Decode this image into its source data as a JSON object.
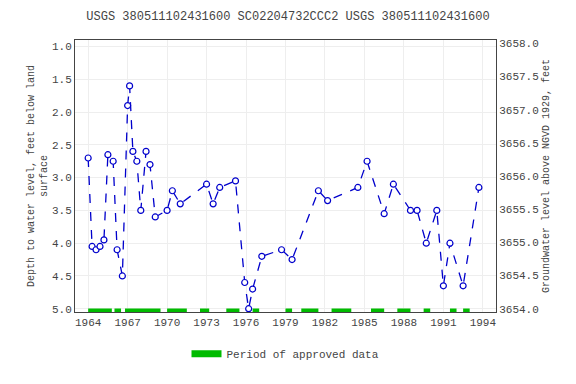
{
  "chart_data": {
    "type": "line",
    "title": "USGS 380511102431600 SC02204732CCC2 USGS 380511102431600",
    "ylabel": "Depth to water level, feet below land\nsurface",
    "y2label": "Groundwater level above NGVD 1929, feet",
    "x": [
      1964.0,
      1964.3,
      1964.6,
      1964.9,
      1965.2,
      1965.5,
      1965.9,
      1966.2,
      1966.6,
      1967.0,
      1967.15,
      1967.4,
      1967.7,
      1968.0,
      1968.4,
      1968.7,
      1969.1,
      1970.0,
      1970.4,
      1971.0,
      1973.0,
      1973.5,
      1974.0,
      1975.2,
      1975.9,
      1976.2,
      1976.5,
      1977.2,
      1978.7,
      1979.5,
      1981.5,
      1982.2,
      1984.5,
      1985.2,
      1986.5,
      1987.2,
      1988.5,
      1989.0,
      1989.7,
      1990.5,
      1991.0,
      1991.5,
      1992.5,
      1993.7
    ],
    "xlim": [
      1963.0,
      1995.0
    ],
    "xticks": [
      1964,
      1967,
      1970,
      1973,
      1976,
      1979,
      1982,
      1985,
      1988,
      1991,
      1994
    ],
    "ylim": [
      5.05,
      0.9
    ],
    "yticks": [
      {
        "value": 1.0,
        "label": "1.0"
      },
      1.5,
      {
        "value": 2.0,
        "label": "2.0"
      },
      2.5,
      {
        "value": 3.0,
        "label": "3.0"
      },
      3.5,
      {
        "value": 4.0,
        "label": "4.0"
      },
      4.5,
      {
        "value": 5.0,
        "label": "5.0"
      }
    ],
    "y2lim": [
      3653.95,
      3658.05
    ],
    "y2ticks": [
      {
        "value": 3654.0,
        "label": "3654.0"
      },
      3654.5,
      {
        "value": 3655.0,
        "label": "3655.0"
      },
      3655.5,
      {
        "value": 3656.0,
        "label": "3656.0"
      },
      3656.5,
      {
        "value": 3657.0,
        "label": "3657.0"
      },
      3657.5,
      {
        "value": 3658.0,
        "label": "3658.0"
      }
    ],
    "grid": true,
    "legend": "bottom",
    "series": [
      {
        "color": "#0000cc",
        "line_style": "dashed",
        "marker": "circle",
        "values": [
          2.7,
          4.05,
          4.1,
          4.05,
          3.95,
          2.65,
          2.75,
          4.1,
          4.5,
          1.9,
          1.6,
          2.6,
          2.75,
          3.5,
          2.6,
          2.8,
          3.6,
          3.5,
          3.2,
          3.4,
          3.1,
          3.4,
          3.15,
          3.05,
          4.6,
          5.0,
          4.7,
          4.2,
          4.1,
          4.25,
          3.2,
          3.35,
          3.15,
          2.75,
          3.55,
          3.1,
          3.5,
          3.5,
          4.0,
          3.5,
          4.65,
          4.0,
          4.65,
          3.15
        ]
      },
      {
        "name": "Period of approved data",
        "type": "span",
        "color": "#00bb00",
        "values": [
          [
            1964.0,
            1965.8
          ],
          [
            1966.0,
            1966.5
          ],
          [
            1966.8,
            1969.5
          ],
          [
            1970.0,
            1971.5
          ],
          [
            1972.5,
            1973.2
          ],
          [
            1974.5,
            1975.5
          ],
          [
            1976.5,
            1977.0
          ],
          [
            1979.0,
            1979.5
          ],
          [
            1980.2,
            1981.5
          ],
          [
            1982.5,
            1984.0
          ],
          [
            1985.5,
            1986.5
          ],
          [
            1987.5,
            1988.5
          ],
          [
            1989.5,
            1990.0
          ],
          [
            1991.5,
            1992.0
          ],
          [
            1992.5,
            1993.0
          ]
        ]
      }
    ]
  }
}
